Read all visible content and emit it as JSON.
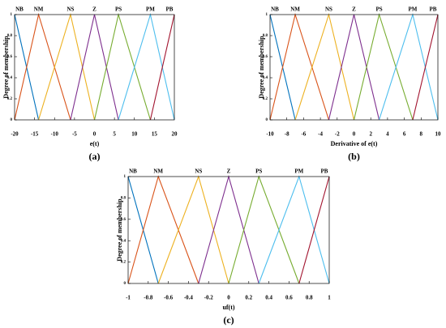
{
  "chart_data": [
    {
      "type": "line",
      "caption": "(a)",
      "xlabel": "e(t)",
      "ylabel": "Degree of membership",
      "xlim": [
        -20,
        20
      ],
      "ylim": [
        0,
        1
      ],
      "xticks": [
        -20,
        -15,
        -10,
        -5,
        0,
        5,
        10,
        15,
        20
      ],
      "yticks": [
        0,
        0.2,
        0.4,
        0.6,
        0.8,
        1
      ],
      "series": [
        {
          "name": "NB",
          "color": "#0072bd",
          "x": [
            -20,
            -14
          ],
          "values": [
            1,
            0
          ]
        },
        {
          "name": "NM",
          "color": "#d95319",
          "x": [
            -20,
            -14,
            -6
          ],
          "values": [
            0,
            1,
            0
          ]
        },
        {
          "name": "NS",
          "color": "#edb120",
          "x": [
            -14,
            -6,
            0
          ],
          "values": [
            0,
            1,
            0
          ]
        },
        {
          "name": "Z",
          "color": "#7e2f8e",
          "x": [
            -6,
            0,
            6
          ],
          "values": [
            0,
            1,
            0
          ]
        },
        {
          "name": "PS",
          "color": "#77ac30",
          "x": [
            0,
            6,
            14
          ],
          "values": [
            0,
            1,
            0
          ]
        },
        {
          "name": "PM",
          "color": "#4dbeee",
          "x": [
            6,
            14,
            20
          ],
          "values": [
            0,
            1,
            0
          ]
        },
        {
          "name": "PB",
          "color": "#a2142f",
          "x": [
            14,
            20
          ],
          "values": [
            0,
            1
          ]
        }
      ]
    },
    {
      "type": "line",
      "caption": "(b)",
      "xlabel": "Derivative of e(t)",
      "ylabel": "Degree of membership",
      "xlim": [
        -10,
        10
      ],
      "ylim": [
        0,
        1
      ],
      "xticks": [
        -10,
        -8,
        -6,
        -4,
        -2,
        0,
        2,
        4,
        6,
        8,
        10
      ],
      "yticks": [
        0,
        0.2,
        0.4,
        0.6,
        0.8,
        1
      ],
      "series": [
        {
          "name": "NB",
          "color": "#0072bd",
          "x": [
            -10,
            -7
          ],
          "values": [
            1,
            0
          ]
        },
        {
          "name": "NM",
          "color": "#d95319",
          "x": [
            -10,
            -7,
            -3
          ],
          "values": [
            0,
            1,
            0
          ]
        },
        {
          "name": "NS",
          "color": "#edb120",
          "x": [
            -7,
            -3,
            0
          ],
          "values": [
            0,
            1,
            0
          ]
        },
        {
          "name": "Z",
          "color": "#7e2f8e",
          "x": [
            -3,
            0,
            3
          ],
          "values": [
            0,
            1,
            0
          ]
        },
        {
          "name": "PS",
          "color": "#77ac30",
          "x": [
            0,
            3,
            7
          ],
          "values": [
            0,
            1,
            0
          ]
        },
        {
          "name": "PM",
          "color": "#4dbeee",
          "x": [
            3,
            7,
            10
          ],
          "values": [
            0,
            1,
            0
          ]
        },
        {
          "name": "PB",
          "color": "#a2142f",
          "x": [
            7,
            10
          ],
          "values": [
            0,
            1
          ]
        }
      ]
    },
    {
      "type": "line",
      "caption": "(c)",
      "xlabel": "uf(t)",
      "ylabel": "Degree of membership",
      "xlim": [
        -1,
        1
      ],
      "ylim": [
        0,
        1
      ],
      "xticks": [
        -1,
        -0.8,
        -0.6,
        -0.4,
        -0.2,
        0,
        0.2,
        0.4,
        0.6,
        0.8,
        1
      ],
      "yticks": [
        0,
        0.2,
        0.4,
        0.6,
        0.8,
        1
      ],
      "series": [
        {
          "name": "NB",
          "color": "#0072bd",
          "x": [
            -1,
            -0.7
          ],
          "values": [
            1,
            0
          ]
        },
        {
          "name": "NM",
          "color": "#d95319",
          "x": [
            -1,
            -0.7,
            -0.3
          ],
          "values": [
            0,
            1,
            0
          ]
        },
        {
          "name": "NS",
          "color": "#edb120",
          "x": [
            -0.7,
            -0.3,
            0
          ],
          "values": [
            0,
            1,
            0
          ]
        },
        {
          "name": "Z",
          "color": "#7e2f8e",
          "x": [
            -0.3,
            0,
            0.3
          ],
          "values": [
            0,
            1,
            0
          ]
        },
        {
          "name": "PS",
          "color": "#77ac30",
          "x": [
            0,
            0.3,
            0.7
          ],
          "values": [
            0,
            1,
            0
          ]
        },
        {
          "name": "PM",
          "color": "#4dbeee",
          "x": [
            0.3,
            0.7,
            1
          ],
          "values": [
            0,
            1,
            0
          ]
        },
        {
          "name": "PB",
          "color": "#a2142f",
          "x": [
            0.7,
            1
          ],
          "values": [
            0,
            1
          ]
        }
      ]
    }
  ]
}
